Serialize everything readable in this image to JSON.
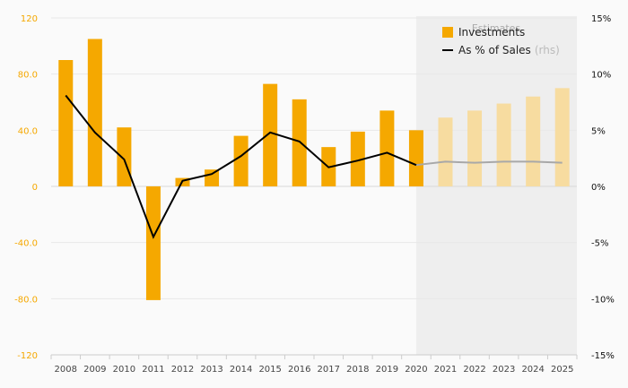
{
  "chart_data": {
    "type": "bar",
    "categories": [
      "2008",
      "2009",
      "2010",
      "2011",
      "2012",
      "2013",
      "2014",
      "2015",
      "2016",
      "2017",
      "2018",
      "2019",
      "2020",
      "2021",
      "2022",
      "2023",
      "2024",
      "2025"
    ],
    "series": [
      {
        "name": "Investments",
        "type": "bar",
        "axis": "left",
        "values": [
          90,
          105,
          42,
          -81,
          6,
          12,
          36,
          73,
          62,
          28,
          39,
          54,
          40,
          49,
          54,
          59,
          64,
          70
        ]
      },
      {
        "name": "As % of Sales",
        "name_suffix": "(rhs)",
        "type": "line",
        "axis": "right",
        "values": [
          8.1,
          4.8,
          2.4,
          -4.5,
          0.5,
          1.1,
          2.7,
          4.8,
          4.0,
          1.7,
          2.3,
          3.0,
          1.9,
          2.2,
          2.1,
          2.2,
          2.2,
          2.1
        ]
      }
    ],
    "estimate_start": "2020",
    "estimates_label": "Estimates",
    "yleft": {
      "ticks": [
        "120",
        "80.0",
        "40.0",
        "0",
        "-40.0",
        "-80.0",
        "-120"
      ],
      "ylim": [
        -120,
        120
      ]
    },
    "yright": {
      "ticks": [
        "15%",
        "10%",
        "5%",
        "0%",
        "-5%",
        "-10%",
        "-15%"
      ],
      "ylim": [
        -15,
        15
      ]
    },
    "grid": true,
    "legend_position": "top-right",
    "colors": {
      "bar": "#f5a800",
      "bar_estimate": "#f7dca0",
      "line": "#000000",
      "line_estimate": "#a8a8a8",
      "estimate_bg": "#eeeeee",
      "left_axis": "#f5a800"
    }
  }
}
